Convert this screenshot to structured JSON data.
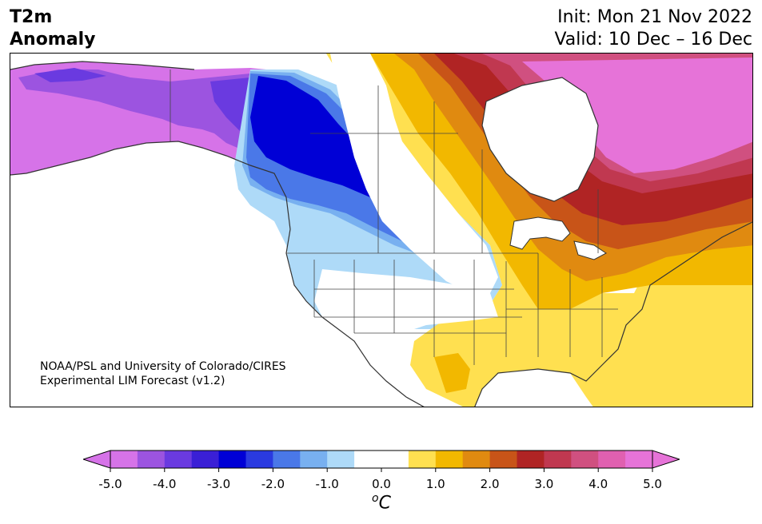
{
  "header": {
    "variable_line1": "T2m",
    "variable_line2": "Anomaly",
    "init": "Init: Mon 21 Nov 2022",
    "valid": "Valid: 10 Dec – 16 Dec"
  },
  "credit": {
    "line1": "NOAA/PSL and University of Colorado/CIRES",
    "line2": "Experimental LIM Forecast (v1.2)"
  },
  "colorbar": {
    "ticks": [
      "-5.0",
      "-4.0",
      "-3.0",
      "-2.0",
      "-1.0",
      "0.0",
      "1.0",
      "2.0",
      "3.0",
      "4.0",
      "5.0"
    ],
    "units_base": "C",
    "units_sup": "o",
    "colors": [
      "#d673e8",
      "#9c54e0",
      "#6a3ae0",
      "#3a1fd6",
      "#0000d6",
      "#2a3ae0",
      "#4a78e8",
      "#78b0f0",
      "#aedaf8",
      "#ffffff",
      "#ffffff",
      "#ffe050",
      "#f2b800",
      "#e08a10",
      "#c85418",
      "#b02424",
      "#c03850",
      "#d05080",
      "#e060b0",
      "#e673d8"
    ]
  },
  "map": {
    "region": "North America",
    "colors": {
      "cold_strong": "#0000d6",
      "cold_mid": "#4a78e8",
      "cold_light": "#aedaf8",
      "cold_purple": "#d673e8",
      "warm_yellow": "#ffe050",
      "warm_orange": "#f2b800",
      "warm_dark_orange": "#e08a10",
      "warm_red": "#b02424",
      "warm_pink": "#e673d8"
    }
  }
}
